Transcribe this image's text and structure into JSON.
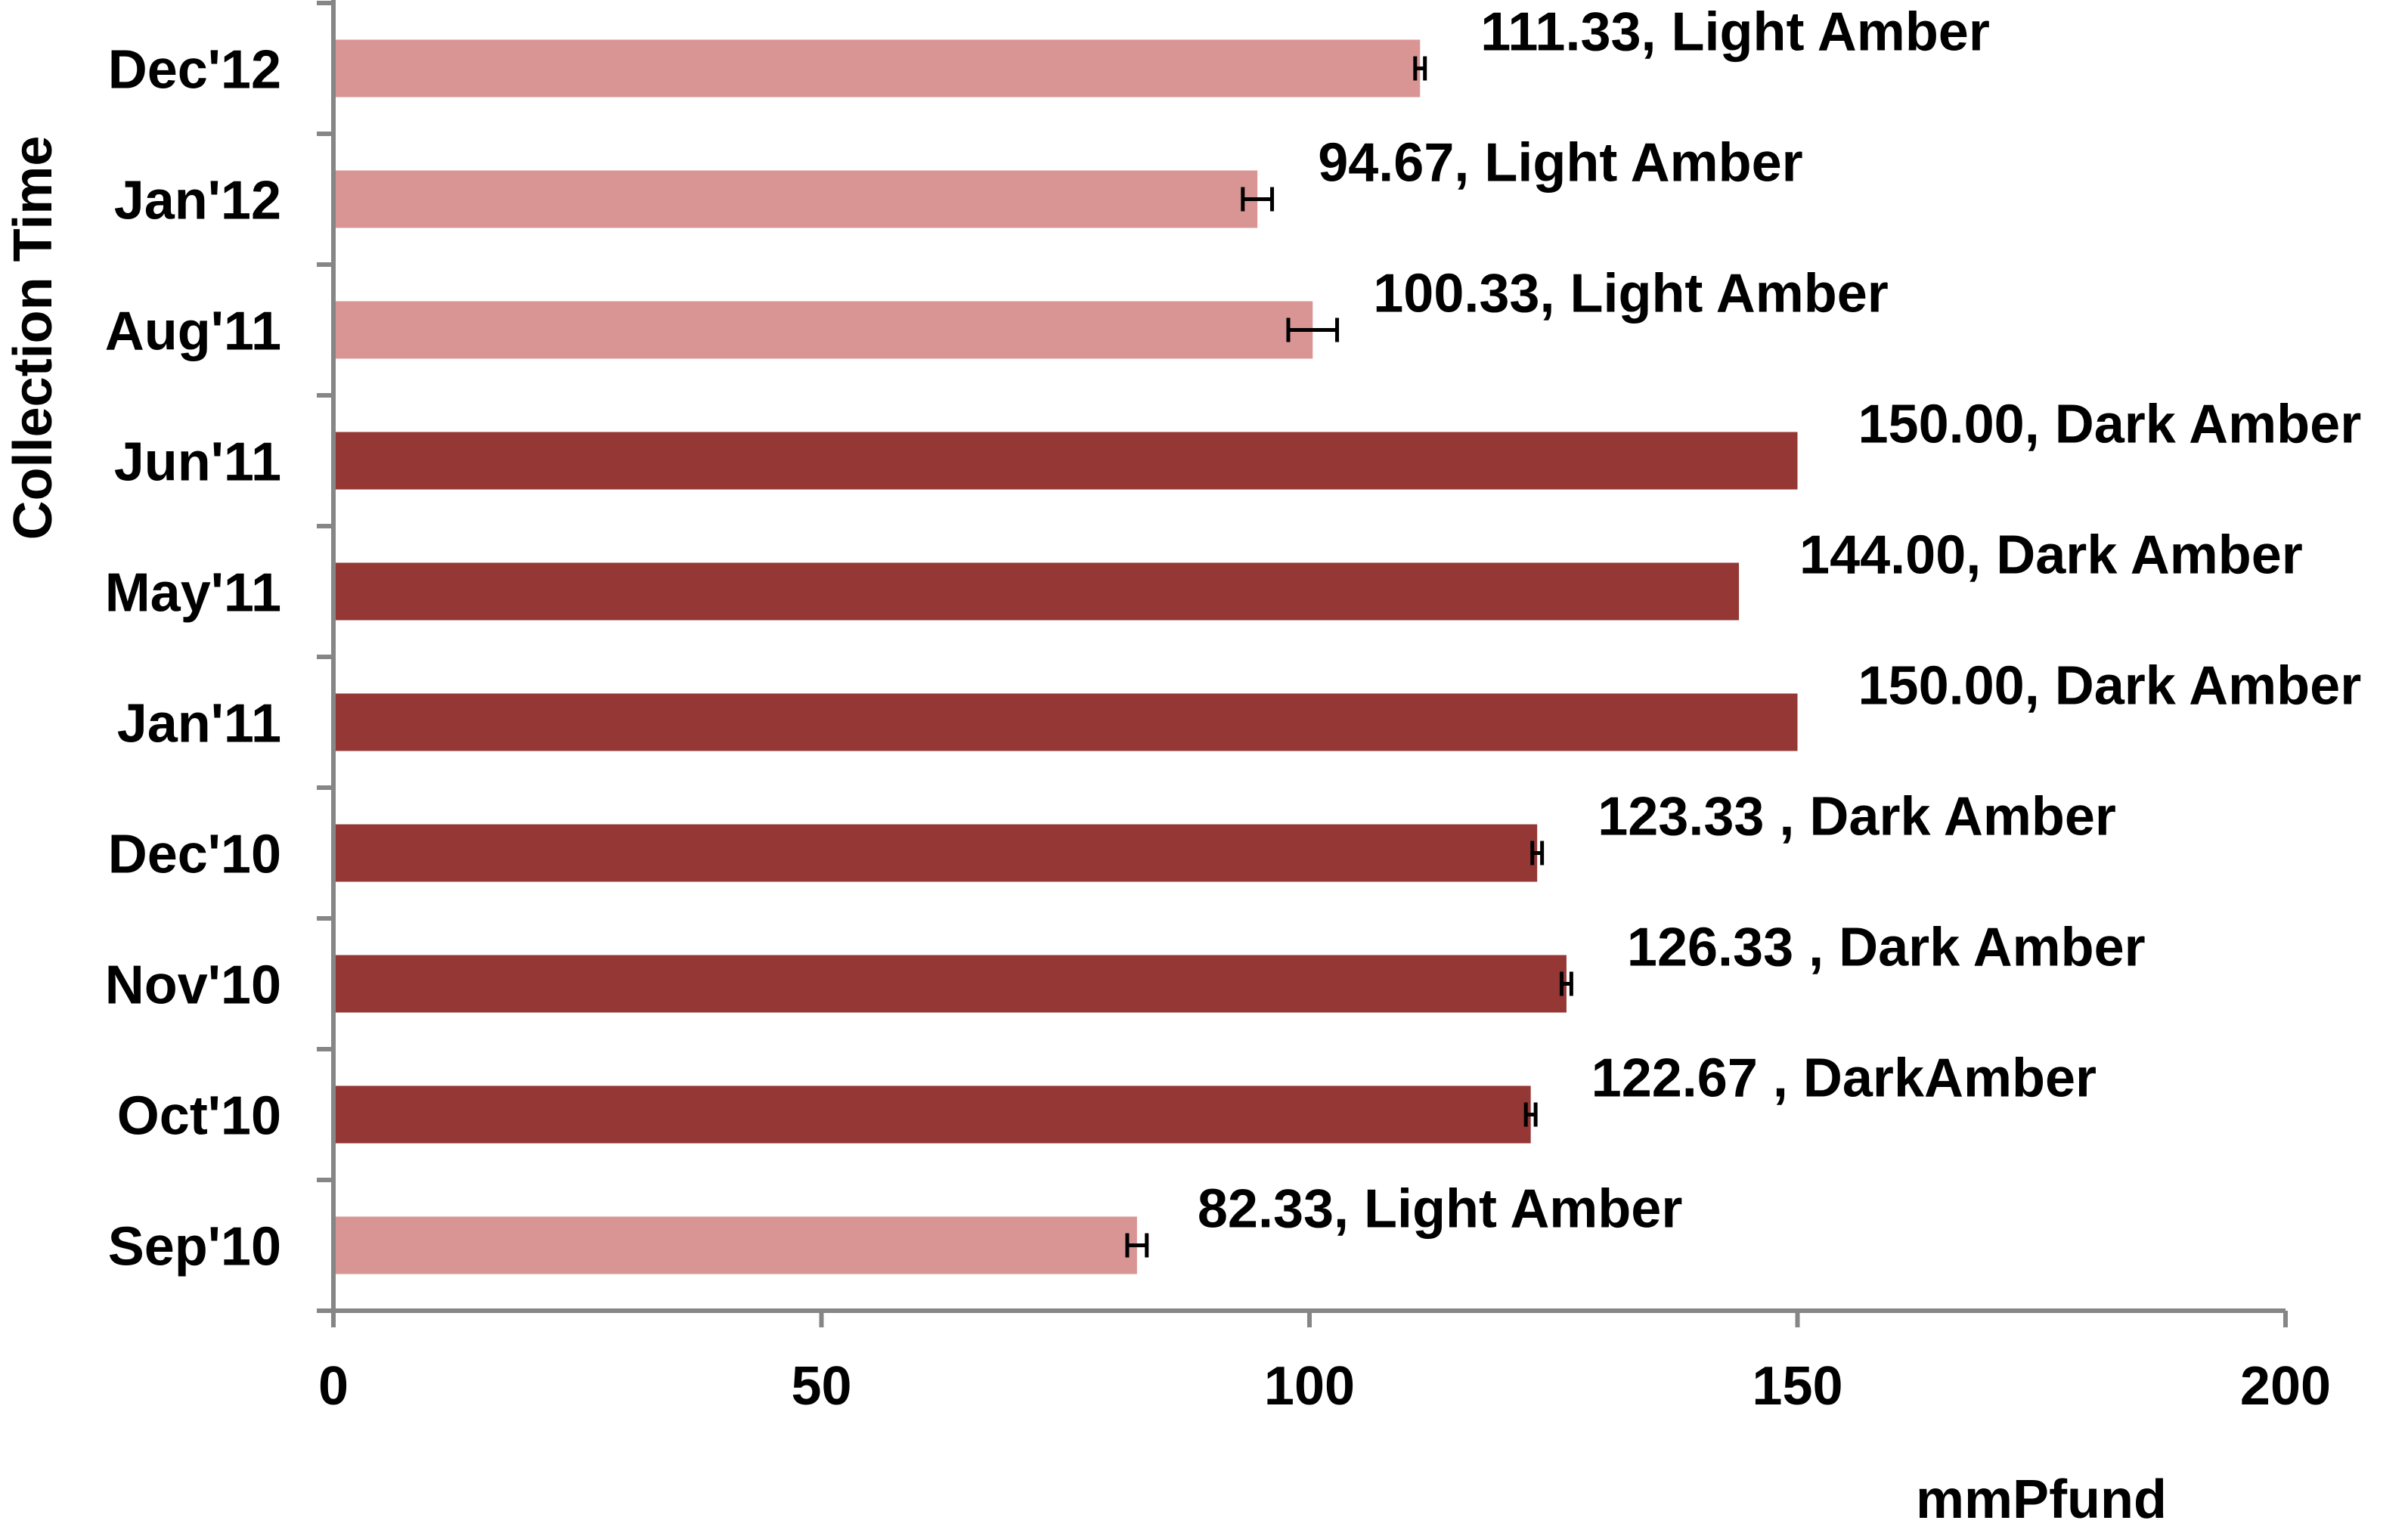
{
  "chart_data": {
    "type": "bar",
    "orientation": "horizontal",
    "xlabel": "mmPfund",
    "ylabel": "Collection Time",
    "xlim": [
      0,
      200
    ],
    "x_ticks": [
      "0",
      "50",
      "100",
      "150",
      "200"
    ],
    "grid": false,
    "legend": "none",
    "categories": [
      "Dec'12",
      "Jan'12",
      "Aug'11",
      "Jun'11",
      "May'11",
      "Jan'11",
      "Dec'10",
      "Nov'10",
      "Oct'10",
      "Sep'10"
    ],
    "values": [
      111.33,
      94.67,
      100.33,
      150.0,
      144.0,
      150.0,
      123.33,
      126.33,
      122.67,
      82.33
    ],
    "errors": [
      0.5,
      1.5,
      2.5,
      0,
      0,
      0,
      0.5,
      0.5,
      0.5,
      1.0
    ],
    "data_labels": [
      "111.33, Light Amber",
      "94.67, Light Amber",
      "100.33, Light Amber",
      "150.00, Dark Amber",
      "144.00, Dark Amber",
      "150.00, Dark Amber",
      "123.33 , Dark Amber",
      "126.33 , Dark Amber",
      "122.67 , DarkAmber",
      "82.33, Light Amber"
    ],
    "bar_classes": [
      "light",
      "light",
      "light",
      "dark",
      "dark",
      "dark",
      "dark",
      "dark",
      "dark",
      "light"
    ],
    "colors": {
      "light": "#d99594",
      "dark": "#953735",
      "axis": "#868686",
      "error_bar": "#000000"
    }
  }
}
